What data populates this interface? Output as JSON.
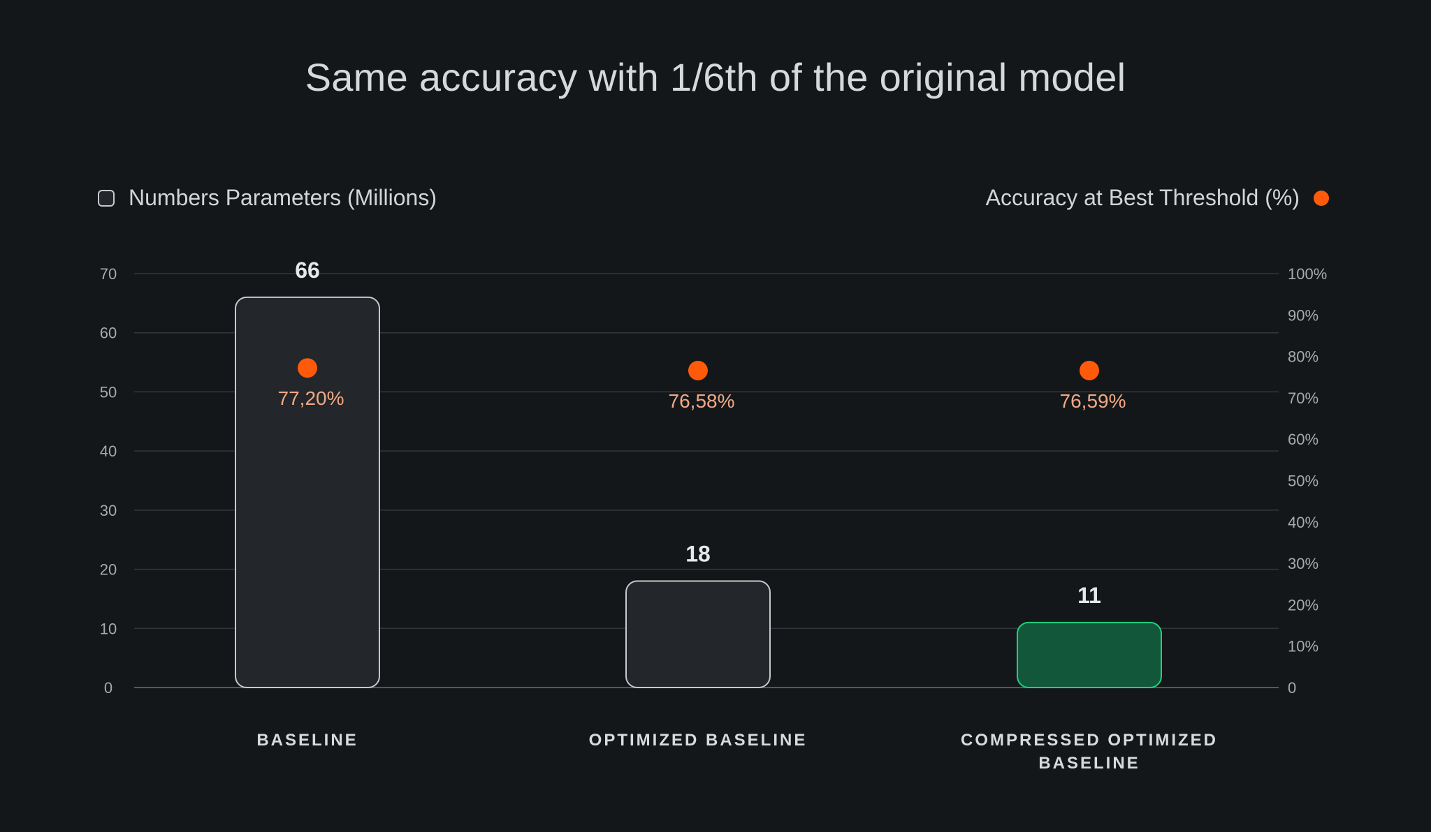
{
  "chart_data": {
    "type": "bar",
    "title": "Same accuracy with 1/6th of the original model",
    "categories": [
      [
        "BASELINE"
      ],
      [
        "OPTIMIZED BASELINE"
      ],
      [
        "COMPRESSED OPTIMIZED",
        "BASELINE"
      ]
    ],
    "series": [
      {
        "name": "Numbers Parameters (Millions)",
        "values": [
          66,
          18,
          11
        ],
        "value_labels": [
          "66",
          "18",
          "11"
        ],
        "axis": "left"
      },
      {
        "name": "Accuracy at Best Threshold (%)",
        "values": [
          77.2,
          76.58,
          76.59
        ],
        "value_labels": [
          "77,20%",
          "76,58%",
          "76,59%"
        ],
        "axis": "right",
        "marker": "dot"
      }
    ],
    "y_left": {
      "range": [
        0,
        70
      ],
      "ticks": [
        "0",
        "10",
        "20",
        "30",
        "40",
        "50",
        "60",
        "70"
      ]
    },
    "y_right": {
      "range": [
        0,
        100
      ],
      "ticks": [
        "0",
        "10%",
        "20%",
        "30%",
        "40%",
        "50%",
        "60%",
        "70%",
        "80%",
        "90%",
        "100%"
      ]
    },
    "grid": true,
    "legend": {
      "left": "top-left",
      "right": "top-right"
    },
    "colors": {
      "background": "#14171a",
      "bar_fill": "#23262a",
      "bar_stroke": "#c7c9cb",
      "highlight_fill": "#12573a",
      "highlight_stroke": "#1fd17a",
      "accuracy_dot": "#ff5a0a",
      "accuracy_text": "#f1a985",
      "grid": "#33373b"
    },
    "highlight_index": 2
  }
}
